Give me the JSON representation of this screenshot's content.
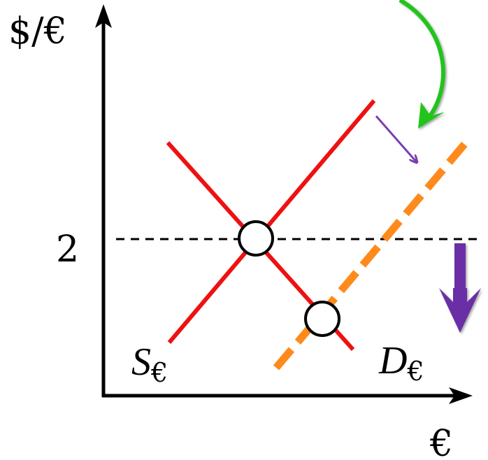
{
  "axes": {
    "y_label": "$/€",
    "x_label": "€",
    "tick_value": "2"
  },
  "curves": {
    "supply_label_main": "S",
    "supply_label_sub": "€",
    "demand_label_main": "D",
    "demand_label_sub": "€"
  },
  "colors": {
    "axis": "#000000",
    "original_curves": "#ee1111",
    "new_demand": "#ff8a1c",
    "shift_arrow": "#7a3fb0",
    "depreciation_arrow": "#6a2fa6",
    "callout_arrow": "#22c41e",
    "equilibrium_fill": "#ffffff"
  }
}
